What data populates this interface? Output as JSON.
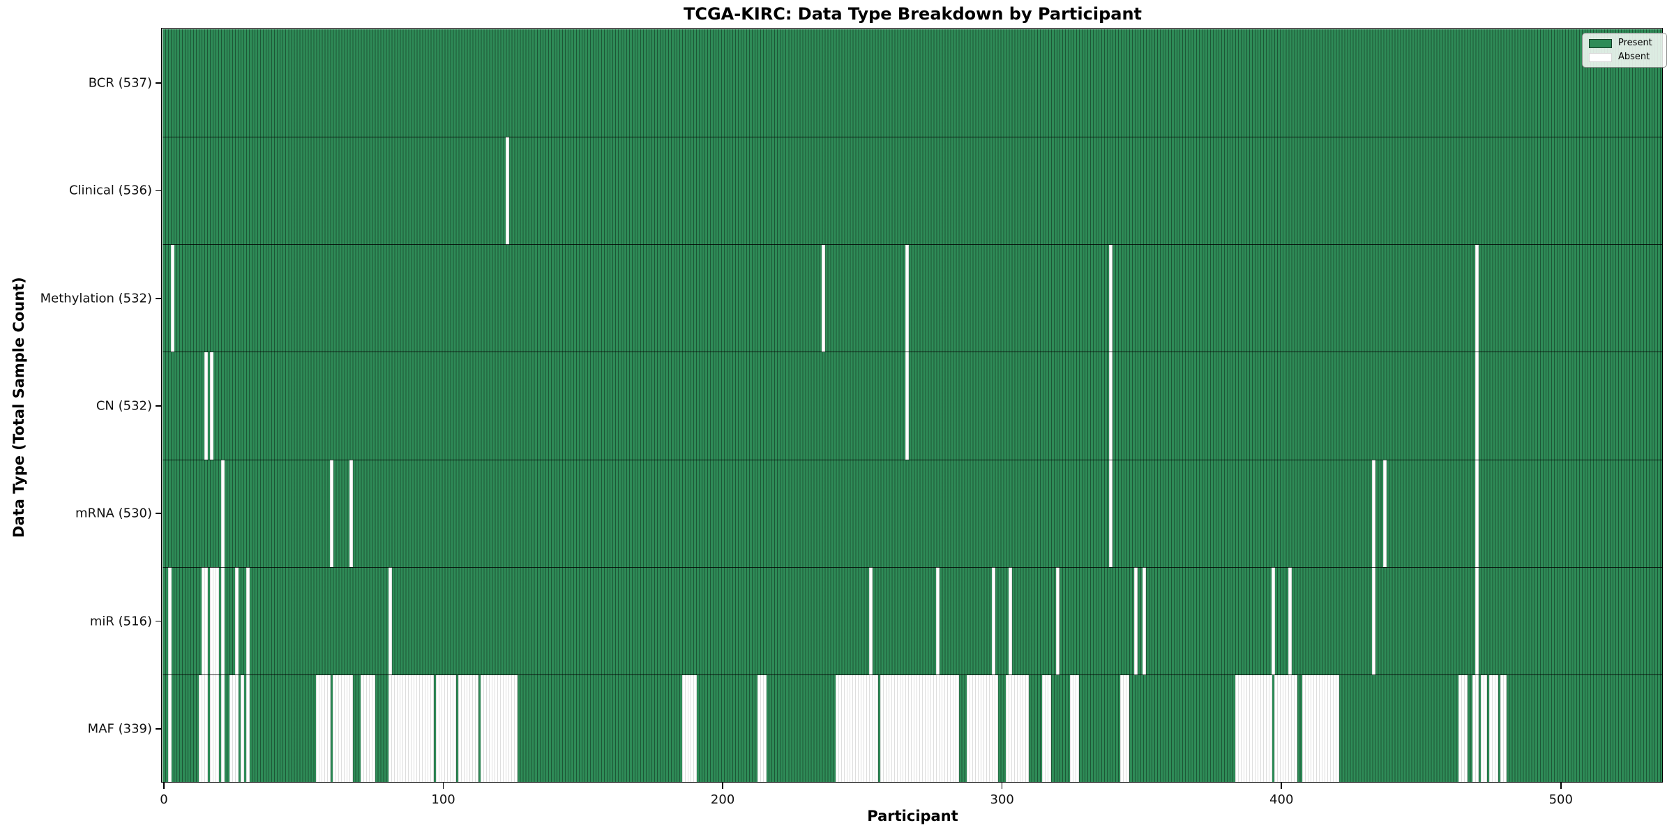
{
  "chart_data": {
    "type": "heatmap",
    "title": "TCGA-KIRC: Data Type Breakdown by Participant",
    "xlabel": "Participant",
    "ylabel": "Data Type (Total Sample Count)",
    "x_ticks": [
      0,
      100,
      200,
      300,
      400,
      500
    ],
    "x_range": [
      0,
      537
    ],
    "n_participants": 537,
    "grid": false,
    "legend_position": "upper right",
    "legend": [
      {
        "label": "Present",
        "color": "#2e8b57"
      },
      {
        "label": "Absent",
        "color": "#ffffff"
      }
    ],
    "colors": {
      "present": "#2e8b57",
      "absent": "#ffffff",
      "bar_edge": "rgba(0,0,0,0.38)",
      "row_separator": "rgba(0,0,0,0.78)"
    },
    "rows": [
      {
        "name": "BCR",
        "label": "BCR (537)",
        "total": 537,
        "absent_ranges": []
      },
      {
        "name": "Clinical",
        "label": "Clinical (536)",
        "total": 536,
        "absent_ranges": [
          [
            123,
            123
          ]
        ]
      },
      {
        "name": "Methylation",
        "label": "Methylation (532)",
        "total": 532,
        "absent_ranges": [
          [
            3,
            3
          ],
          [
            236,
            236
          ],
          [
            266,
            266
          ],
          [
            339,
            339
          ],
          [
            470,
            470
          ]
        ]
      },
      {
        "name": "CN",
        "label": "CN (532)",
        "total": 532,
        "absent_ranges": [
          [
            15,
            15
          ],
          [
            17,
            17
          ],
          [
            266,
            266
          ],
          [
            339,
            339
          ],
          [
            470,
            470
          ]
        ]
      },
      {
        "name": "mRNA",
        "label": "mRNA (530)",
        "total": 530,
        "absent_ranges": [
          [
            21,
            21
          ],
          [
            60,
            60
          ],
          [
            67,
            67
          ],
          [
            339,
            339
          ],
          [
            433,
            433
          ],
          [
            437,
            437
          ],
          [
            470,
            470
          ]
        ]
      },
      {
        "name": "miR",
        "label": "miR (516)",
        "total": 516,
        "absent_ranges": [
          [
            2,
            2
          ],
          [
            14,
            15
          ],
          [
            17,
            19
          ],
          [
            21,
            21
          ],
          [
            26,
            26
          ],
          [
            30,
            30
          ],
          [
            81,
            81
          ],
          [
            253,
            253
          ],
          [
            277,
            277
          ],
          [
            297,
            297
          ],
          [
            303,
            303
          ],
          [
            320,
            320
          ],
          [
            348,
            348
          ],
          [
            351,
            351
          ],
          [
            397,
            397
          ],
          [
            403,
            403
          ],
          [
            433,
            433
          ],
          [
            470,
            470
          ]
        ]
      },
      {
        "name": "MAF",
        "label": "MAF (339)",
        "total": 339,
        "absent_ranges": [
          [
            2,
            2
          ],
          [
            13,
            15
          ],
          [
            17,
            19
          ],
          [
            21,
            21
          ],
          [
            24,
            26
          ],
          [
            28,
            28
          ],
          [
            30,
            30
          ],
          [
            55,
            59
          ],
          [
            61,
            67
          ],
          [
            71,
            75
          ],
          [
            81,
            96
          ],
          [
            98,
            104
          ],
          [
            106,
            112
          ],
          [
            114,
            126
          ],
          [
            186,
            190
          ],
          [
            213,
            215
          ],
          [
            241,
            255
          ],
          [
            257,
            284
          ],
          [
            288,
            298
          ],
          [
            302,
            309
          ],
          [
            315,
            317
          ],
          [
            325,
            327
          ],
          [
            343,
            345
          ],
          [
            384,
            396
          ],
          [
            398,
            405
          ],
          [
            408,
            420
          ],
          [
            464,
            466
          ],
          [
            469,
            470
          ],
          [
            472,
            473
          ],
          [
            475,
            477
          ],
          [
            479,
            480
          ]
        ]
      }
    ]
  }
}
